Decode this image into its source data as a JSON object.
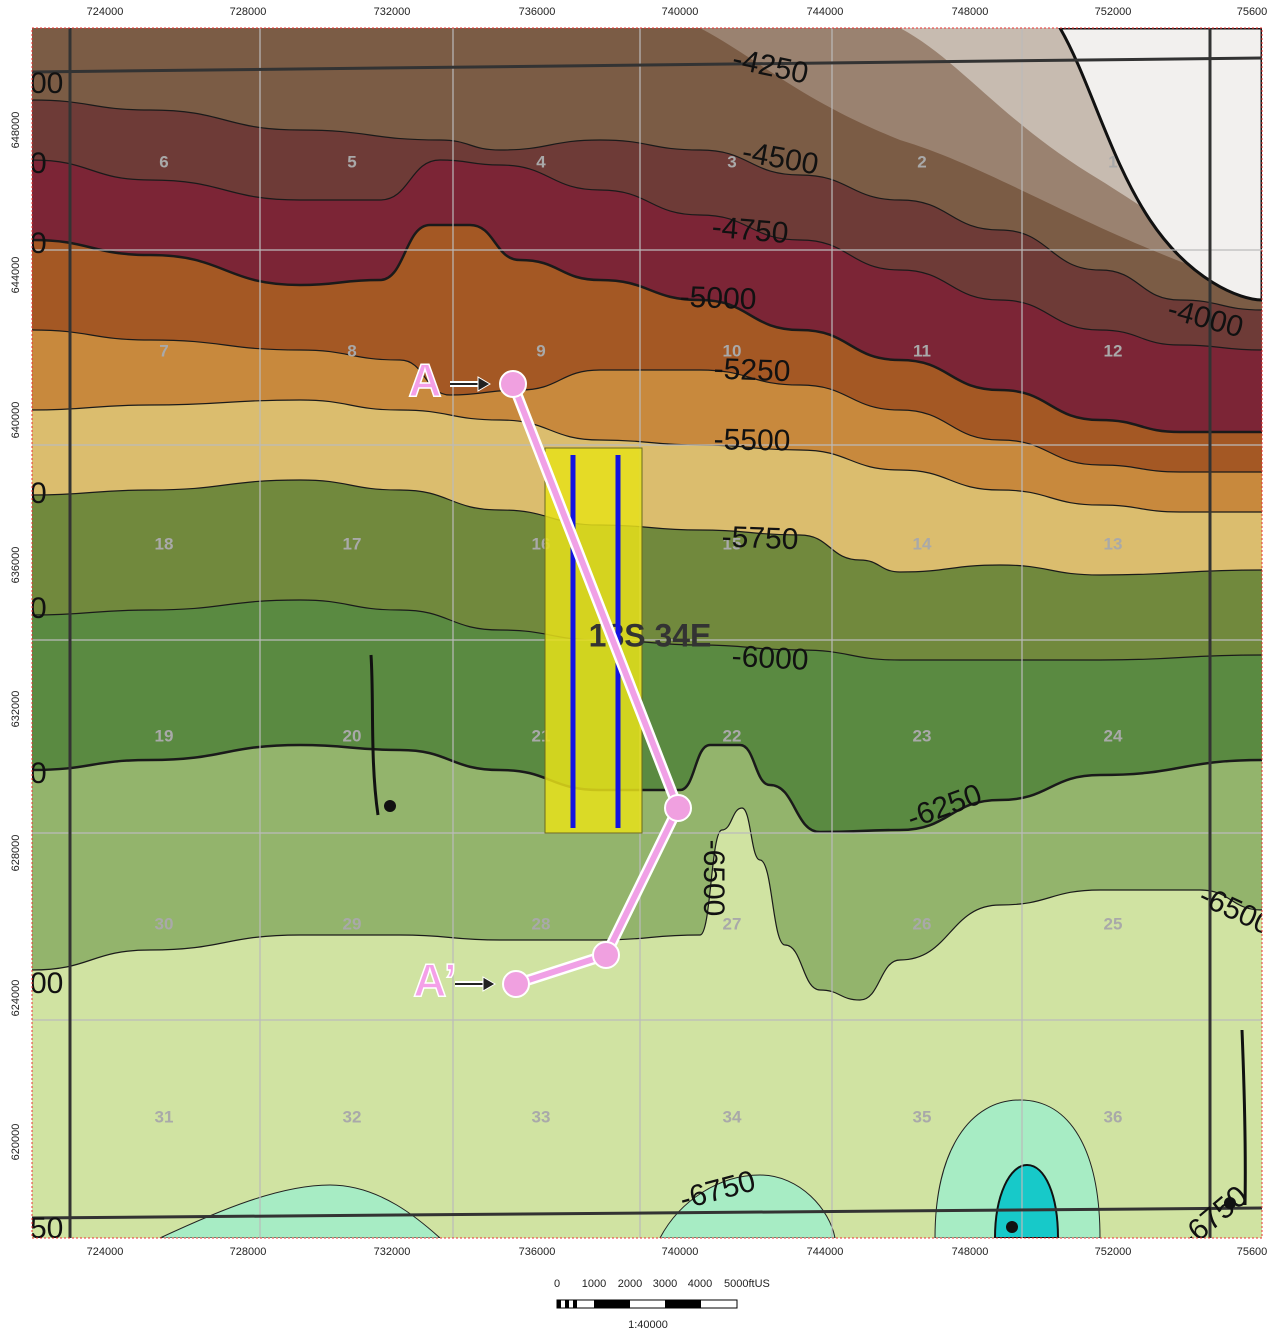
{
  "axes": {
    "x_ticks": [
      "724000",
      "728000",
      "732000",
      "736000",
      "740000",
      "744000",
      "748000",
      "752000",
      "75600"
    ],
    "y_ticks": [
      "648000",
      "644000",
      "640000",
      "636000",
      "632000",
      "628000",
      "624000",
      "620000"
    ]
  },
  "contour_labels": [
    "-4250",
    "-4500",
    "-4750",
    "-5000",
    "-5250",
    "-5500",
    "-5750",
    "-6000",
    "-6250",
    "-6500",
    "-6500",
    "-6750",
    "-6750",
    "-4000"
  ],
  "edge_fragments": [
    "00",
    "0",
    "0",
    "0",
    "0",
    "0",
    "00",
    "50"
  ],
  "sections": [
    "6",
    "5",
    "4",
    "3",
    "2",
    "1",
    "7",
    "8",
    "9",
    "10",
    "11",
    "12",
    "18",
    "17",
    "16",
    "15",
    "14",
    "13",
    "19",
    "20",
    "21",
    "22",
    "23",
    "24",
    "30",
    "29",
    "28",
    "27",
    "26",
    "25",
    "31",
    "32",
    "33",
    "34",
    "35",
    "36"
  ],
  "township": "18S 34E",
  "cross_section": {
    "start": "A",
    "end": "A’"
  },
  "scale_bar": {
    "labels": [
      "0",
      "1000",
      "2000",
      "3000",
      "4000",
      "5000ftUS"
    ],
    "ratio": "1:40000"
  }
}
